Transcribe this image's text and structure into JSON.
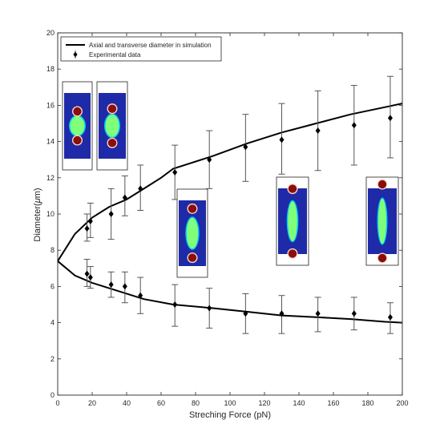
{
  "chart_data": {
    "type": "line",
    "xlabel": "Streching Force (pN)",
    "ylabel_prefix": "Diameter(",
    "ylabel_mu": "μ",
    "ylabel_suffix": "m)",
    "xlim": [
      0,
      200
    ],
    "ylim": [
      0,
      20
    ],
    "xticks": [
      0,
      20,
      40,
      60,
      80,
      100,
      120,
      140,
      160,
      180,
      200
    ],
    "yticks": [
      0,
      2,
      4,
      6,
      8,
      10,
      12,
      14,
      16,
      18,
      20
    ],
    "grid": false,
    "legend_position": "top-left",
    "legend": [
      {
        "label": "Axial and transverse diameter in simulation",
        "marker": "line"
      },
      {
        "label": "Experimental data",
        "marker": "diamond-errorbar"
      }
    ],
    "series": [
      {
        "name": "Axial and transverse diameter in simulation",
        "kind": "line",
        "points": [
          [
            0,
            7.4
          ],
          [
            10,
            8.9
          ],
          [
            20,
            9.8
          ],
          [
            30,
            10.4
          ],
          [
            40,
            10.8
          ],
          [
            50,
            11.4
          ],
          [
            60,
            12.0
          ],
          [
            67,
            12.5
          ],
          [
            90,
            13.2
          ],
          [
            110,
            13.9
          ],
          [
            130,
            14.5
          ],
          [
            150,
            15.0
          ],
          [
            170,
            15.5
          ],
          [
            190,
            15.9
          ],
          [
            200,
            16.1
          ]
        ]
      },
      {
        "name": "Axial and transverse diameter in simulation",
        "kind": "line",
        "points": [
          [
            0,
            7.4
          ],
          [
            10,
            6.6
          ],
          [
            20,
            6.2
          ],
          [
            30,
            5.9
          ],
          [
            40,
            5.6
          ],
          [
            50,
            5.3
          ],
          [
            67,
            5.0
          ],
          [
            90,
            4.8
          ],
          [
            110,
            4.6
          ],
          [
            130,
            4.4
          ],
          [
            150,
            4.3
          ],
          [
            170,
            4.2
          ],
          [
            190,
            4.05
          ],
          [
            200,
            4.0
          ]
        ]
      },
      {
        "name": "Experimental data",
        "kind": "errorbar",
        "points": [
          {
            "x": 17,
            "y": 9.2,
            "lo": 8.5,
            "hi": 10.0
          },
          {
            "x": 19,
            "y": 9.6,
            "lo": 8.7,
            "hi": 10.6
          },
          {
            "x": 31,
            "y": 10.0,
            "lo": 8.6,
            "hi": 11.4
          },
          {
            "x": 39,
            "y": 10.9,
            "lo": 9.9,
            "hi": 12.1
          },
          {
            "x": 48,
            "y": 11.4,
            "lo": 10.2,
            "hi": 12.7
          },
          {
            "x": 68,
            "y": 12.3,
            "lo": 10.8,
            "hi": 13.8
          },
          {
            "x": 88,
            "y": 13.0,
            "lo": 11.4,
            "hi": 14.6
          },
          {
            "x": 109,
            "y": 13.7,
            "lo": 11.8,
            "hi": 15.5
          },
          {
            "x": 130,
            "y": 14.1,
            "lo": 12.2,
            "hi": 16.1
          },
          {
            "x": 151,
            "y": 14.6,
            "lo": 12.4,
            "hi": 16.8
          },
          {
            "x": 172,
            "y": 14.9,
            "lo": 12.7,
            "hi": 17.1
          },
          {
            "x": 193,
            "y": 15.3,
            "lo": 13.1,
            "hi": 17.6
          },
          {
            "x": 17,
            "y": 6.7,
            "lo": 6.0,
            "hi": 7.5
          },
          {
            "x": 19,
            "y": 6.5,
            "lo": 5.9,
            "hi": 7.1
          },
          {
            "x": 31,
            "y": 6.1,
            "lo": 5.4,
            "hi": 6.8
          },
          {
            "x": 39,
            "y": 6.0,
            "lo": 5.1,
            "hi": 6.8
          },
          {
            "x": 48,
            "y": 5.5,
            "lo": 4.5,
            "hi": 6.5
          },
          {
            "x": 68,
            "y": 5.0,
            "lo": 3.8,
            "hi": 6.1
          },
          {
            "x": 88,
            "y": 4.8,
            "lo": 3.7,
            "hi": 5.9
          },
          {
            "x": 109,
            "y": 4.5,
            "lo": 3.4,
            "hi": 5.6
          },
          {
            "x": 130,
            "y": 4.5,
            "lo": 3.4,
            "hi": 5.5
          },
          {
            "x": 151,
            "y": 4.5,
            "lo": 3.5,
            "hi": 5.4
          },
          {
            "x": 172,
            "y": 4.5,
            "lo": 3.6,
            "hi": 5.4
          },
          {
            "x": 193,
            "y": 4.3,
            "lo": 3.4,
            "hi": 5.1
          }
        ]
      }
    ],
    "inset_images": [
      {
        "content": "cell-stretch-simulation",
        "stretch": 0.0
      },
      {
        "content": "cell-stretch-simulation",
        "stretch": 0.12
      },
      {
        "content": "cell-stretch-simulation",
        "stretch": 0.45
      },
      {
        "content": "cell-stretch-simulation",
        "stretch": 0.8
      },
      {
        "content": "cell-stretch-simulation",
        "stretch": 1.0
      }
    ],
    "colors": {
      "line": "#000000",
      "axis": "#262626",
      "inset_background": "#1f2aa8",
      "inset_cell": "#7fff7a",
      "inset_cell_edge": "#00c4ff",
      "inset_bead": "#8a0e0e",
      "inset_bead_edge": "#ffd9c6"
    }
  }
}
